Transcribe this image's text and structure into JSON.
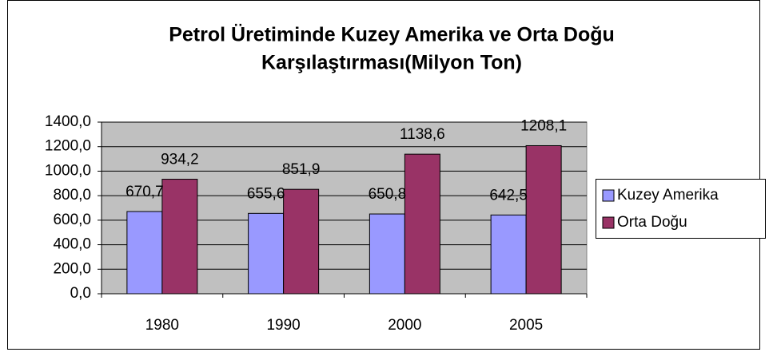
{
  "chart_data": {
    "type": "bar",
    "title": [
      "Petrol Üretiminde Kuzey Amerika ve Orta Doğu",
      "Karşılaştırması(Milyon Ton)"
    ],
    "categories": [
      "1980",
      "1990",
      "2000",
      "2005"
    ],
    "series": [
      {
        "name": "Kuzey Amerika",
        "color": "#9999ff",
        "values": [
          670.7,
          655.6,
          650.8,
          642.5
        ],
        "value_labels": [
          "670,7",
          "655,6",
          "650,8",
          "642,5"
        ]
      },
      {
        "name": "Orta Doğu",
        "color": "#993366",
        "values": [
          934.2,
          851.9,
          1138.6,
          1208.1
        ],
        "value_labels": [
          "934,2",
          "851,9",
          "1138,6",
          "1208,1"
        ]
      }
    ],
    "ylim": [
      0,
      1400
    ],
    "yticks": [
      {
        "value": 0,
        "label": "0,0"
      },
      {
        "value": 200,
        "label": "200,0"
      },
      {
        "value": 400,
        "label": "400,0"
      },
      {
        "value": 600,
        "label": "600,0"
      },
      {
        "value": 800,
        "label": "800,0"
      },
      {
        "value": 1000,
        "label": "1000,0"
      },
      {
        "value": 1200,
        "label": "1200,0"
      },
      {
        "value": 1400,
        "label": "1400,0"
      }
    ],
    "grid": true,
    "legend": "right"
  }
}
